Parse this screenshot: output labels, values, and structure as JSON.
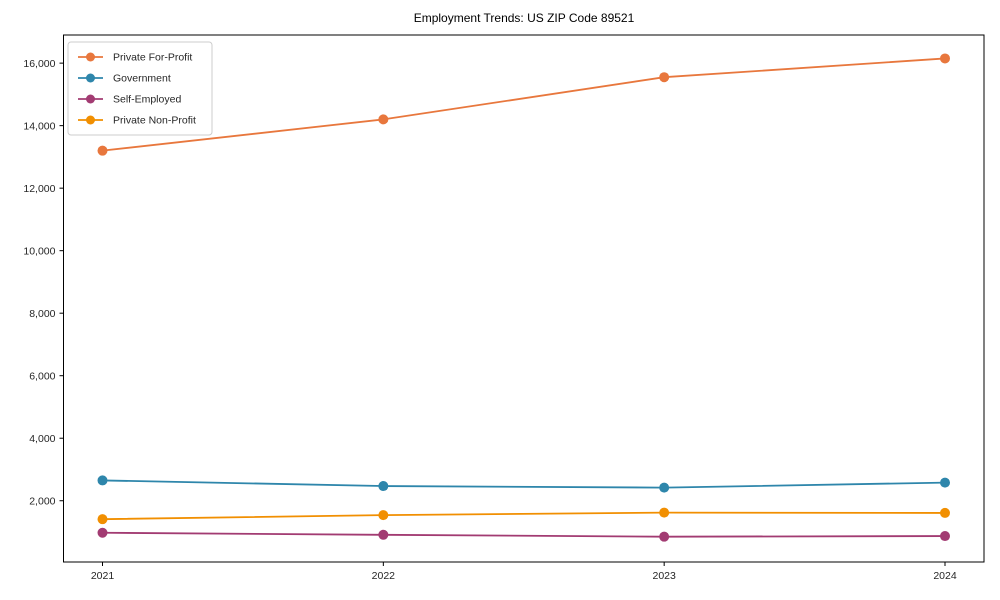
{
  "chart_data": {
    "type": "line",
    "title": "Employment Trends: US ZIP Code 89521",
    "xlabel": "",
    "ylabel": "",
    "x": [
      2021,
      2022,
      2023,
      2024
    ],
    "x_tick_labels": [
      "2021",
      "2022",
      "2023",
      "2024"
    ],
    "y_ticks": [
      2000,
      4000,
      6000,
      8000,
      10000,
      12000,
      14000,
      16000
    ],
    "y_tick_labels": [
      "2,000",
      "4,000",
      "6,000",
      "8,000",
      "10,000",
      "12,000",
      "14,000",
      "16,000"
    ],
    "ylim": [
      40,
      16900
    ],
    "grid": false,
    "marker": "circle",
    "legend_position": "upper left",
    "series": [
      {
        "name": "Private For-Profit",
        "color": "#E8773D",
        "values": [
          13200,
          14200,
          15550,
          16150
        ]
      },
      {
        "name": "Government",
        "color": "#2E86AB",
        "values": [
          2650,
          2470,
          2420,
          2580
        ]
      },
      {
        "name": "Self-Employed",
        "color": "#A23B72",
        "values": [
          975,
          910,
          850,
          870
        ]
      },
      {
        "name": "Private Non-Profit",
        "color": "#F18F01",
        "values": [
          1410,
          1540,
          1620,
          1610
        ]
      }
    ],
    "colors": {
      "axis": "#000000",
      "tick_label": "#262626",
      "legend_border": "#cccccc",
      "background": "#ffffff"
    }
  }
}
